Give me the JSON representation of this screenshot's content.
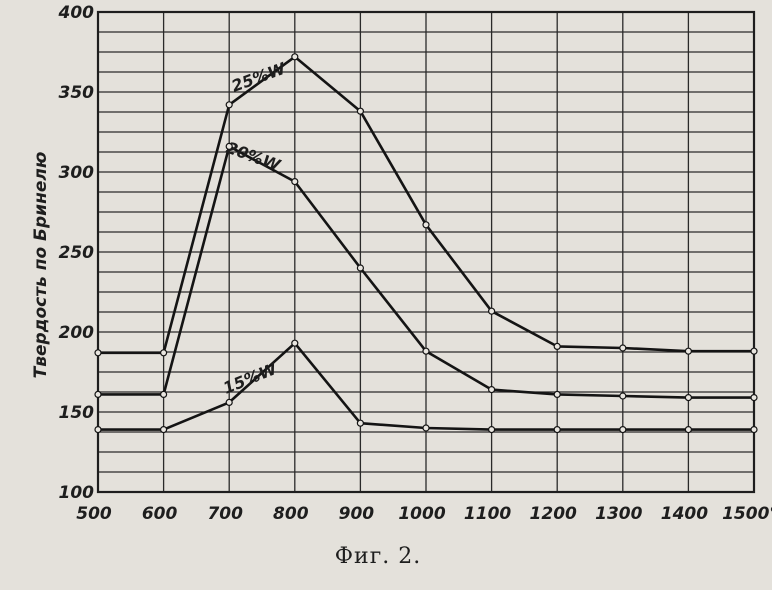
{
  "chart_data": {
    "type": "line",
    "title": "",
    "xlabel": "",
    "ylabel": "Твердость по Бринелю",
    "caption": "Фиг. 2.",
    "xlim": [
      500,
      1500
    ],
    "ylim": [
      100,
      400
    ],
    "x_ticks": [
      "500",
      "600",
      "700",
      "800",
      "900",
      "1000",
      "1100",
      "1200",
      "1300",
      "1400",
      "1500°"
    ],
    "y_ticks": [
      "100",
      "150",
      "200",
      "250",
      "300",
      "350",
      "400"
    ],
    "grid": true,
    "x": [
      500,
      600,
      700,
      800,
      900,
      1000,
      1100,
      1200,
      1300,
      1400,
      1500
    ],
    "series": [
      {
        "name": "25%W",
        "values": [
          187,
          187,
          342,
          372,
          338,
          267,
          213,
          191,
          190,
          188,
          188
        ]
      },
      {
        "name": "20%W",
        "values": [
          161,
          161,
          316,
          294,
          240,
          188,
          164,
          161,
          160,
          159,
          159
        ]
      },
      {
        "name": "15%W",
        "values": [
          139,
          139,
          156,
          193,
          143,
          140,
          139,
          139,
          139,
          139,
          139
        ]
      }
    ]
  }
}
